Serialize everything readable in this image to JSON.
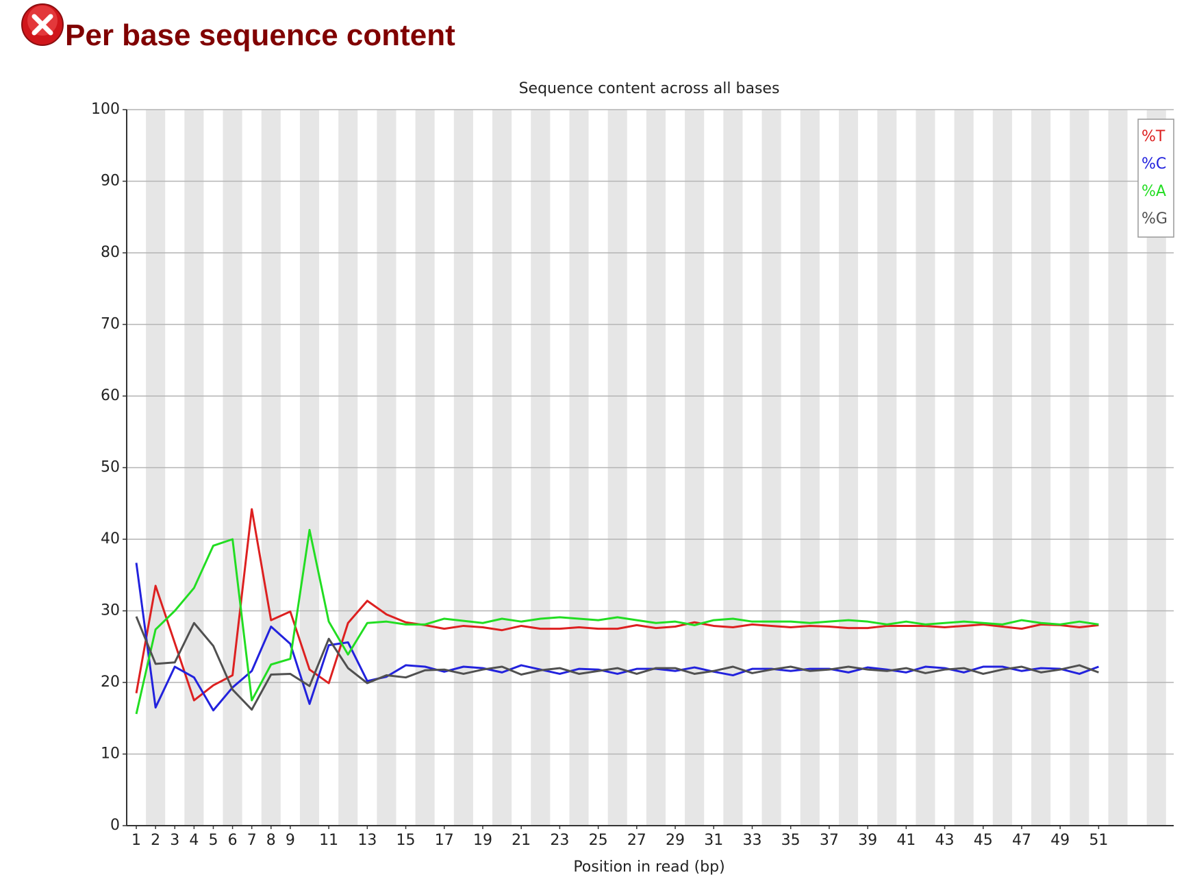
{
  "header": {
    "title": "Per base sequence content"
  },
  "chart_data": {
    "type": "line",
    "title": "Sequence content across all bases",
    "x_label": "Position in read (bp)",
    "x": [
      1,
      2,
      3,
      4,
      5,
      6,
      7,
      8,
      9,
      10,
      11,
      12,
      13,
      14,
      15,
      16,
      17,
      18,
      19,
      20,
      21,
      22,
      23,
      24,
      25,
      26,
      27,
      28,
      29,
      30,
      31,
      32,
      33,
      34,
      35,
      36,
      37,
      38,
      39,
      40,
      41,
      42,
      43,
      44,
      45,
      46,
      47,
      48,
      49,
      50,
      51
    ],
    "xlim": [
      0.5,
      54.9
    ],
    "xticks": [
      1,
      2,
      3,
      4,
      5,
      6,
      7,
      8,
      9,
      11,
      13,
      15,
      17,
      19,
      21,
      23,
      25,
      27,
      29,
      31,
      33,
      35,
      37,
      39,
      41,
      43,
      45,
      47,
      49,
      51
    ],
    "ylim": [
      0,
      100
    ],
    "yticks": [
      0,
      10,
      20,
      30,
      40,
      50,
      60,
      70,
      80,
      90,
      100
    ],
    "grid": true,
    "legend": "top-right",
    "series": [
      {
        "name": "%T",
        "color": "#dd2020",
        "values": [
          18.5,
          33.5,
          25.5,
          17.5,
          19.6,
          21,
          44.2,
          28.7,
          29.9,
          21.8,
          19.9,
          28.3,
          31.4,
          29.5,
          28.4,
          28,
          27.5,
          27.9,
          27.7,
          27.3,
          27.9,
          27.5,
          27.5,
          27.7,
          27.5,
          27.5,
          28,
          27.6,
          27.8,
          28.4,
          27.9,
          27.7,
          28.1,
          27.9,
          27.7,
          27.9,
          27.8,
          27.6,
          27.6,
          27.9,
          27.9,
          27.9,
          27.7,
          27.9,
          28.1,
          27.8,
          27.5,
          28.1,
          28,
          27.7,
          28
        ]
      },
      {
        "name": "%C",
        "color": "#2222dd",
        "values": [
          36.7,
          16.5,
          22.2,
          20.7,
          16.1,
          19.3,
          21.6,
          27.8,
          25.4,
          17,
          25.2,
          25.6,
          20.2,
          20.8,
          22.4,
          22.2,
          21.5,
          22.2,
          22,
          21.4,
          22.4,
          21.8,
          21.2,
          21.9,
          21.8,
          21.2,
          21.9,
          21.9,
          21.6,
          22.1,
          21.5,
          21,
          21.9,
          21.9,
          21.6,
          21.9,
          21.9,
          21.4,
          22.1,
          21.8,
          21.4,
          22.2,
          22,
          21.4,
          22.2,
          22.2,
          21.6,
          22,
          21.9,
          21.2,
          22.2
        ]
      },
      {
        "name": "%A",
        "color": "#22dd22",
        "values": [
          15.6,
          27.4,
          30,
          33.2,
          39.1,
          40,
          17.5,
          22.5,
          23.3,
          41.3,
          28.5,
          23.9,
          28.3,
          28.5,
          28.1,
          28.1,
          28.9,
          28.6,
          28.3,
          28.9,
          28.5,
          28.9,
          29.1,
          28.9,
          28.7,
          29.1,
          28.7,
          28.3,
          28.5,
          28,
          28.7,
          28.9,
          28.5,
          28.5,
          28.5,
          28.3,
          28.5,
          28.7,
          28.5,
          28.1,
          28.5,
          28.1,
          28.3,
          28.5,
          28.3,
          28.1,
          28.7,
          28.3,
          28.1,
          28.5,
          28.1
        ]
      },
      {
        "name": "%G",
        "color": "#505050",
        "values": [
          29.2,
          22.6,
          22.8,
          28.3,
          25.1,
          19,
          16.2,
          21.1,
          21.2,
          19.5,
          26.1,
          22,
          19.9,
          21,
          20.7,
          21.7,
          21.8,
          21.2,
          21.8,
          22.2,
          21.1,
          21.7,
          22,
          21.2,
          21.6,
          22,
          21.2,
          22,
          22,
          21.2,
          21.6,
          22.2,
          21.3,
          21.8,
          22.2,
          21.6,
          21.8,
          22.2,
          21.8,
          21.6,
          22,
          21.3,
          21.8,
          22,
          21.2,
          21.8,
          22.2,
          21.4,
          21.8,
          22.4,
          21.4
        ]
      }
    ]
  }
}
